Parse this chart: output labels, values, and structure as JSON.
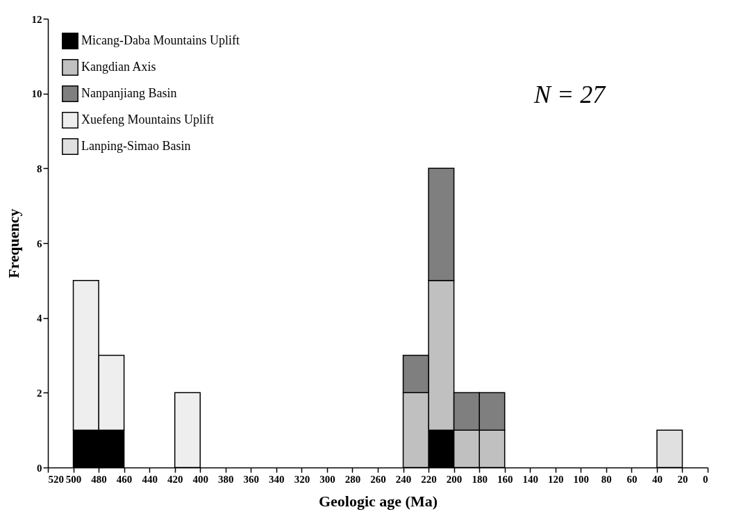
{
  "chart_data": {
    "type": "bar",
    "xlabel": "Geologic age (Ma)",
    "ylabel": "Frequency",
    "x": [
      30,
      170,
      190,
      210,
      230,
      410,
      470,
      490
    ],
    "series": [
      {
        "name": "Micang-Daba Mountains Uplift",
        "color": "#000000",
        "values": [
          0,
          0,
          0,
          1,
          0,
          0,
          1,
          1
        ]
      },
      {
        "name": "Kangdian Axis",
        "color": "#c0c0c0",
        "values": [
          0,
          1,
          1,
          4,
          2,
          0,
          0,
          0
        ]
      },
      {
        "name": "Nanpanjiang Basin",
        "color": "#7f7f7f",
        "values": [
          0,
          1,
          1,
          3,
          1,
          0,
          0,
          0
        ]
      },
      {
        "name": "Xuefeng Mountains Uplift",
        "color": "#eeeeee",
        "values": [
          0,
          0,
          0,
          0,
          0,
          2,
          2,
          4
        ]
      },
      {
        "name": "Lanping-Simao Basin",
        "color": "#e0e0e0",
        "values": [
          1,
          0,
          0,
          0,
          0,
          0,
          0,
          0
        ]
      }
    ],
    "stacked": true,
    "xlim": [
      520,
      0
    ],
    "xticks": [
      520,
      500,
      480,
      460,
      440,
      420,
      400,
      380,
      360,
      340,
      320,
      300,
      280,
      260,
      240,
      220,
      200,
      180,
      160,
      140,
      120,
      100,
      80,
      60,
      40,
      20,
      0
    ],
    "ylim": [
      0,
      12
    ],
    "yticks": [
      0,
      2,
      4,
      6,
      8,
      10,
      12
    ],
    "grid": false,
    "legend": "top left",
    "annotations": [
      "N = 27"
    ]
  }
}
